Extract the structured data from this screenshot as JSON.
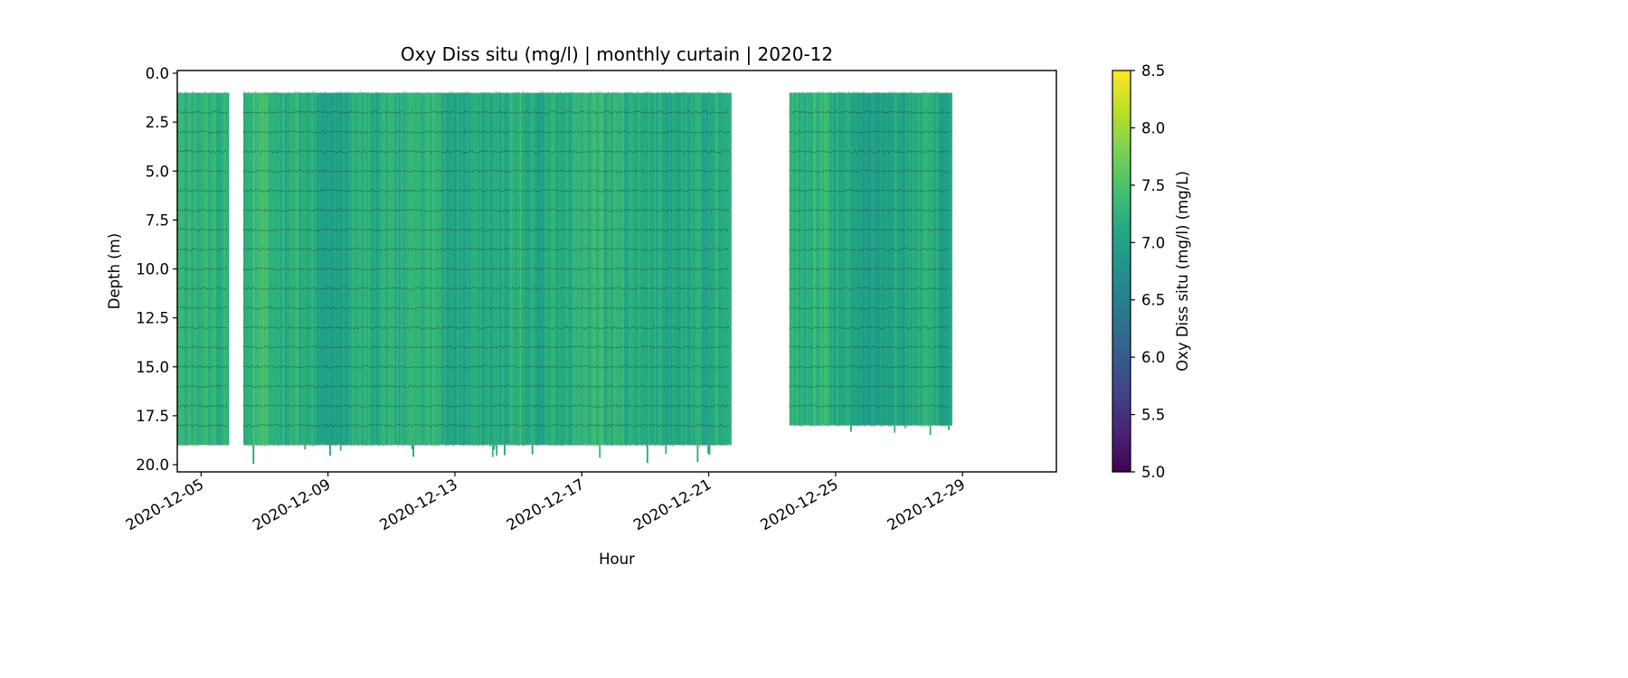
{
  "chart_data": {
    "type": "heatmap",
    "subtype": "depth-time curtain",
    "title": "Oxy Diss situ (mg/l) | monthly curtain | 2020-12",
    "xlabel": "Hour",
    "ylabel": "Depth (m)",
    "x_type": "date",
    "x_range": [
      "2020-12-04T06:00",
      "2020-12-31T23:00"
    ],
    "x_ticks": [
      "2020-12-05",
      "2020-12-09",
      "2020-12-13",
      "2020-12-17",
      "2020-12-21",
      "2020-12-25",
      "2020-12-29"
    ],
    "y_range": [
      0.0,
      20.0
    ],
    "y_inverted": true,
    "y_ticks": [
      "0.0",
      "2.5",
      "5.0",
      "7.5",
      "10.0",
      "12.5",
      "15.0",
      "17.5",
      "20.0"
    ],
    "colorbar": {
      "label": "Oxy Diss situ (mg/l) (mg/L)",
      "colormap": "viridis",
      "range": [
        5.0,
        8.5
      ],
      "ticks": [
        "5.0",
        "5.5",
        "6.0",
        "6.5",
        "7.0",
        "7.5",
        "8.0",
        "8.5"
      ]
    },
    "data_blocks": [
      {
        "start": "2020-12-04T06:00",
        "end": "2020-12-05T21:00",
        "depth_top": 1.0,
        "depth_bottom": 19.0,
        "typical_value": 7.2
      },
      {
        "start": "2020-12-06T08:00",
        "end": "2020-12-21T17:00",
        "depth_top": 1.0,
        "depth_bottom": 19.0,
        "max_depth_spikes": 20.0,
        "typical_value": 7.2
      },
      {
        "start": "2020-12-23T13:00",
        "end": "2020-12-28T16:00",
        "depth_top": 1.0,
        "depth_bottom": 18.0,
        "max_depth_spikes": 19.0,
        "typical_value": 7.2
      }
    ],
    "sample_depth_lines": [
      1,
      2,
      3,
      4,
      5,
      6,
      7,
      8,
      9,
      10,
      11,
      12,
      13,
      14,
      15,
      16,
      17,
      18,
      19
    ],
    "value_range_observed": [
      6.5,
      7.9
    ],
    "grid": false
  }
}
